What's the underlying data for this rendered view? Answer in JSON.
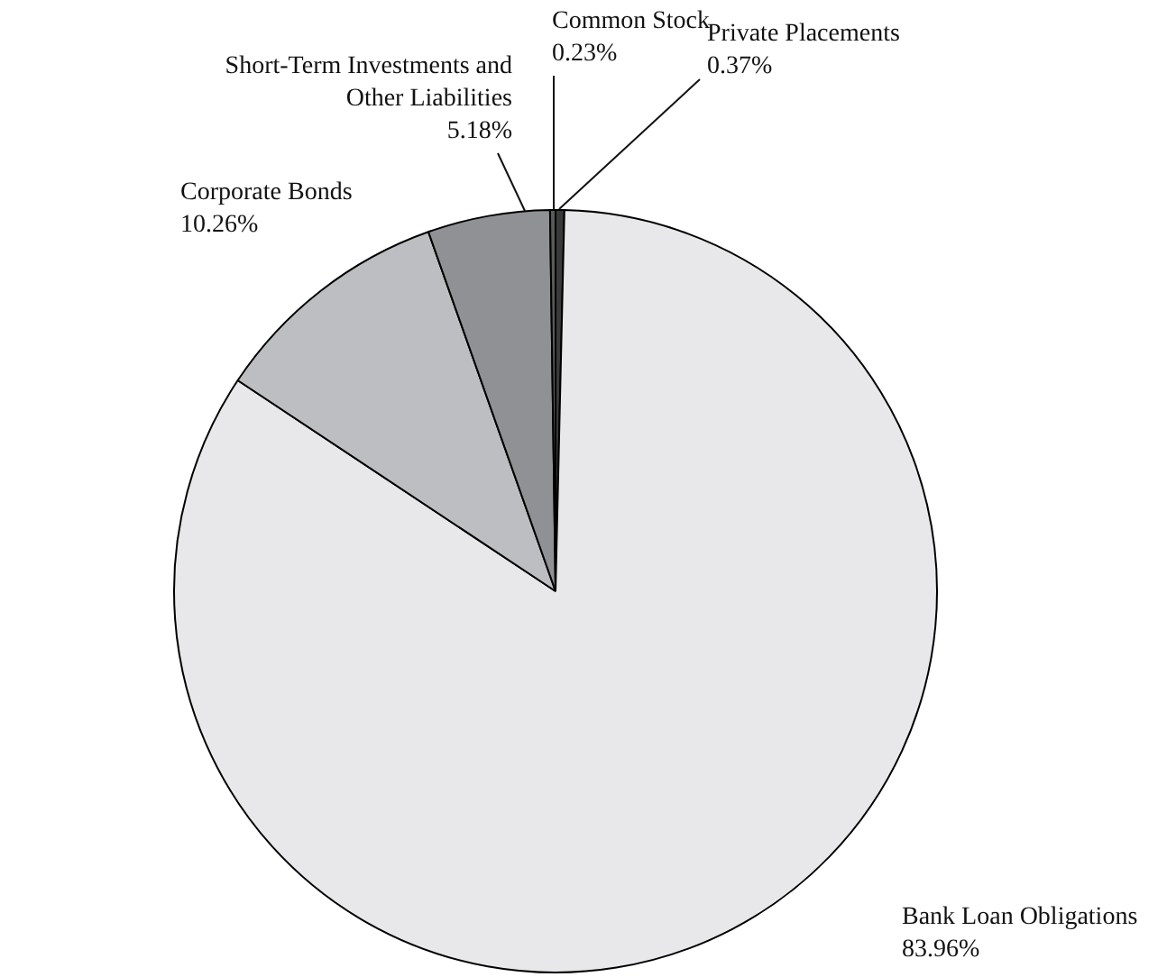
{
  "chart_data": {
    "type": "pie",
    "categories": [
      "Private Placements",
      "Bank Loan Obligations",
      "Corporate Bonds",
      "Short-Term Investments and Other Liabilities",
      "Common Stock"
    ],
    "values": [
      0.37,
      83.96,
      10.26,
      5.18,
      0.23
    ],
    "value_labels": [
      "0.37%",
      "83.96%",
      "10.26%",
      "5.18%",
      "0.23%"
    ],
    "colors": [
      "#3a3a3a",
      "#e8e8ea",
      "#bdbec1",
      "#909194",
      "#5a5a5a"
    ],
    "legend": false
  }
}
